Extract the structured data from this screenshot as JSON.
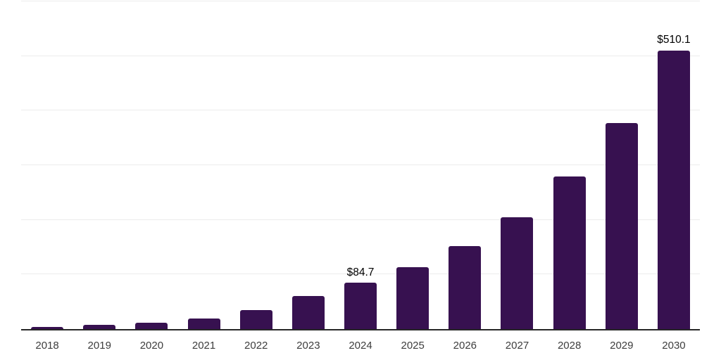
{
  "chart_data": {
    "type": "bar",
    "title": "",
    "xlabel": "",
    "ylabel": "",
    "categories": [
      "2018",
      "2019",
      "2020",
      "2021",
      "2022",
      "2023",
      "2024",
      "2025",
      "2026",
      "2027",
      "2028",
      "2029",
      "2030"
    ],
    "values": [
      3.5,
      8.2,
      11.8,
      19.6,
      34.9,
      60.6,
      84.7,
      113.1,
      151.8,
      205.3,
      279.5,
      377.4,
      510.1
    ],
    "bar_labels": [
      "",
      "",
      "",
      "",
      "",
      "",
      "$84.7",
      "",
      "",
      "",
      "",
      "",
      "$510.1"
    ],
    "ylim": [
      0,
      600
    ],
    "gridline_values": [
      100,
      200,
      300,
      400,
      500,
      600
    ],
    "grid": "horizontal",
    "legend": "none",
    "colors": {
      "bar": "#371150",
      "axis_line": "#262626",
      "gridline": "#ececec",
      "tick_label": "#3d3d3d",
      "value_label": "#000000",
      "background": "#ffffff"
    }
  }
}
